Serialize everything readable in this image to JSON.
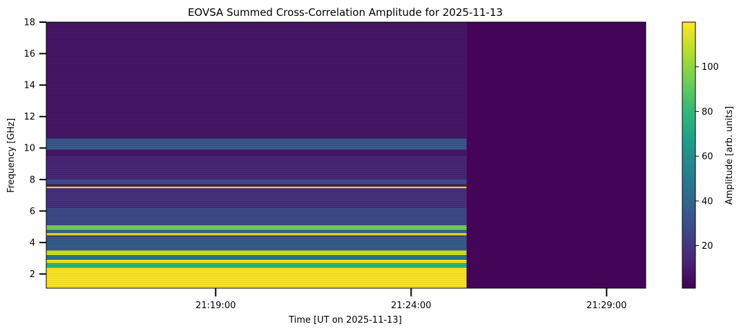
{
  "chart_data": {
    "type": "heatmap",
    "title": "EOVSA Summed Cross-Correlation Amplitude for 2025-11-13",
    "xlabel": "Time [UT on 2025-11-13]",
    "ylabel": "Frequency [GHz]",
    "colorbar_label": "Amplitude [arb. units]",
    "colormap": "viridis",
    "colormap_stops": [
      "#440154",
      "#482878",
      "#3e4989",
      "#31688e",
      "#26828e",
      "#1f9e89",
      "#35b779",
      "#6ece58",
      "#b5de2b",
      "#fde725"
    ],
    "x_range": [
      "21:14:40",
      "21:30:00"
    ],
    "x_ticks": [
      "21:19:00",
      "21:24:00",
      "21:29:00"
    ],
    "data_end_time": "21:25:25",
    "ylim": [
      1.1,
      18
    ],
    "y_ticks": [
      2,
      4,
      6,
      8,
      10,
      12,
      14,
      16,
      18
    ],
    "clim": [
      1,
      120
    ],
    "colorbar_ticks": [
      20,
      40,
      60,
      80,
      100
    ],
    "background_amplitude": 8,
    "no_data_amplitude": 2,
    "bands": [
      {
        "fmin": 1.1,
        "fmax": 2.4,
        "amplitude": 120
      },
      {
        "fmin": 2.4,
        "fmax": 2.7,
        "amplitude": 78
      },
      {
        "fmin": 2.7,
        "fmax": 2.9,
        "amplitude": 118
      },
      {
        "fmin": 2.9,
        "fmax": 3.2,
        "amplitude": 45
      },
      {
        "fmin": 3.2,
        "fmax": 3.5,
        "amplitude": 112
      },
      {
        "fmin": 3.5,
        "fmax": 4.4,
        "amplitude": 36
      },
      {
        "fmin": 4.45,
        "fmax": 4.6,
        "amplitude": 118
      },
      {
        "fmin": 4.6,
        "fmax": 4.8,
        "amplitude": 40
      },
      {
        "fmin": 4.8,
        "fmax": 5.1,
        "amplitude": 95
      },
      {
        "fmin": 5.1,
        "fmax": 6.2,
        "amplitude": 28
      },
      {
        "fmin": 6.2,
        "fmax": 7.4,
        "amplitude": 18
      },
      {
        "fmin": 7.45,
        "fmax": 7.55,
        "amplitude": 118
      },
      {
        "fmin": 7.7,
        "fmax": 8.0,
        "amplitude": 30
      },
      {
        "fmin": 8.0,
        "fmax": 9.5,
        "amplitude": 14
      },
      {
        "fmin": 9.9,
        "fmax": 10.6,
        "amplitude": 35
      }
    ]
  }
}
